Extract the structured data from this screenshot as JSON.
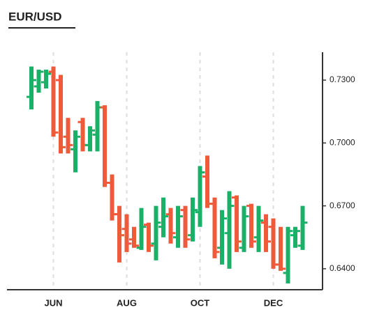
{
  "chart_data": {
    "type": "ohlc",
    "title": "EUR/USD",
    "categories": [
      null,
      null,
      null,
      "JUN",
      null,
      null,
      null,
      null,
      null,
      null,
      null,
      null,
      null,
      "AUG",
      null,
      null,
      null,
      null,
      null,
      null,
      null,
      null,
      null,
      "OCT",
      null,
      null,
      null,
      null,
      null,
      null,
      null,
      null,
      null,
      "DEC",
      null,
      null,
      null,
      null
    ],
    "open": [
      0.722,
      0.727,
      0.729,
      0.734,
      0.73,
      0.703,
      0.697,
      0.71,
      0.699,
      0.704,
      0.717,
      0.681,
      0.666,
      0.659,
      0.654,
      0.65,
      0.661,
      0.652,
      0.66,
      0.666,
      0.655,
      0.668,
      0.656,
      0.667,
      0.684,
      0.671,
      0.65,
      0.657,
      0.674,
      0.65,
      0.67,
      0.655,
      0.662,
      0.66,
      0.642,
      0.638,
      0.656,
      0.651
    ],
    "high": [
      0.7365,
      0.735,
      0.735,
      0.7365,
      0.7325,
      0.712,
      0.706,
      0.712,
      0.708,
      0.72,
      0.718,
      0.685,
      0.67,
      0.666,
      0.66,
      0.669,
      0.662,
      0.67,
      0.674,
      0.669,
      0.67,
      0.67,
      0.674,
      0.689,
      0.694,
      0.674,
      0.668,
      0.677,
      0.675,
      0.67,
      0.671,
      0.67,
      0.666,
      0.664,
      0.66,
      0.66,
      0.66,
      0.67
    ],
    "low": [
      0.716,
      0.724,
      0.726,
      0.703,
      0.695,
      0.695,
      0.686,
      0.696,
      0.696,
      0.696,
      0.679,
      0.663,
      0.643,
      0.648,
      0.65,
      0.649,
      0.648,
      0.644,
      0.655,
      0.652,
      0.65,
      0.65,
      0.653,
      0.66,
      0.669,
      0.645,
      0.642,
      0.64,
      0.648,
      0.648,
      0.65,
      0.648,
      0.648,
      0.64,
      0.639,
      0.633,
      0.65,
      0.649
    ],
    "close": [
      0.73,
      0.734,
      0.733,
      0.705,
      0.698,
      0.699,
      0.703,
      0.699,
      0.706,
      0.717,
      0.681,
      0.666,
      0.656,
      0.652,
      0.651,
      0.66,
      0.651,
      0.662,
      0.665,
      0.657,
      0.665,
      0.654,
      0.668,
      0.686,
      0.671,
      0.648,
      0.664,
      0.67,
      0.653,
      0.665,
      0.653,
      0.663,
      0.653,
      0.642,
      0.64,
      0.658,
      0.658,
      0.662
    ],
    "up_color": "#1bb067",
    "down_color": "#ee5a3a",
    "ylim": [
      0.63,
      0.7433
    ],
    "yticks": [
      {
        "value": 0.64,
        "label": "0.6400"
      },
      {
        "value": 0.67,
        "label": "0.6700"
      },
      {
        "value": 0.7,
        "label": "0.7000"
      },
      {
        "value": 0.73,
        "label": "0.7300"
      }
    ],
    "grid": true
  }
}
